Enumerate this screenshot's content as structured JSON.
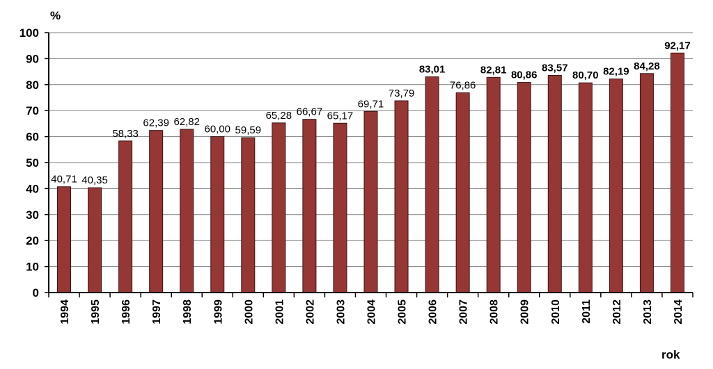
{
  "chart_data": {
    "type": "bar",
    "ylabel": "%",
    "xlabel": "rok",
    "ylim": [
      0,
      100
    ],
    "yticks": [
      "0",
      "10",
      "20",
      "30",
      "40",
      "50",
      "60",
      "70",
      "80",
      "90",
      "100"
    ],
    "grid": true,
    "bar_color": "#953735",
    "highlight_color": "#c00000",
    "categories": [
      "1994",
      "1995",
      "1996",
      "1997",
      "1998",
      "1999",
      "2000",
      "2001",
      "2002",
      "2003",
      "2004",
      "2005",
      "2006",
      "2007",
      "2008",
      "2009",
      "2010",
      "2011",
      "2012",
      "2013",
      "2014"
    ],
    "values": [
      40.71,
      40.35,
      58.33,
      62.39,
      62.82,
      60.0,
      59.59,
      65.28,
      66.67,
      65.17,
      69.71,
      73.79,
      83.01,
      76.86,
      82.81,
      80.86,
      83.57,
      80.7,
      82.19,
      84.28,
      92.17
    ],
    "data_labels": [
      "40,71",
      "40,35",
      "58,33",
      "62,39",
      "62,82",
      "60,00",
      "59,59",
      "65,28",
      "66,67",
      "65,17",
      "69,71",
      "73,79",
      "83,01",
      "76,86",
      "82,81",
      "80,86",
      "83,57",
      "80,70",
      "82,19",
      "84,28",
      "92,17"
    ],
    "bold_labels": [
      false,
      false,
      false,
      false,
      false,
      false,
      false,
      false,
      false,
      false,
      false,
      false,
      true,
      false,
      true,
      true,
      true,
      true,
      true,
      true,
      true
    ],
    "highlighted_label_index": 20
  }
}
